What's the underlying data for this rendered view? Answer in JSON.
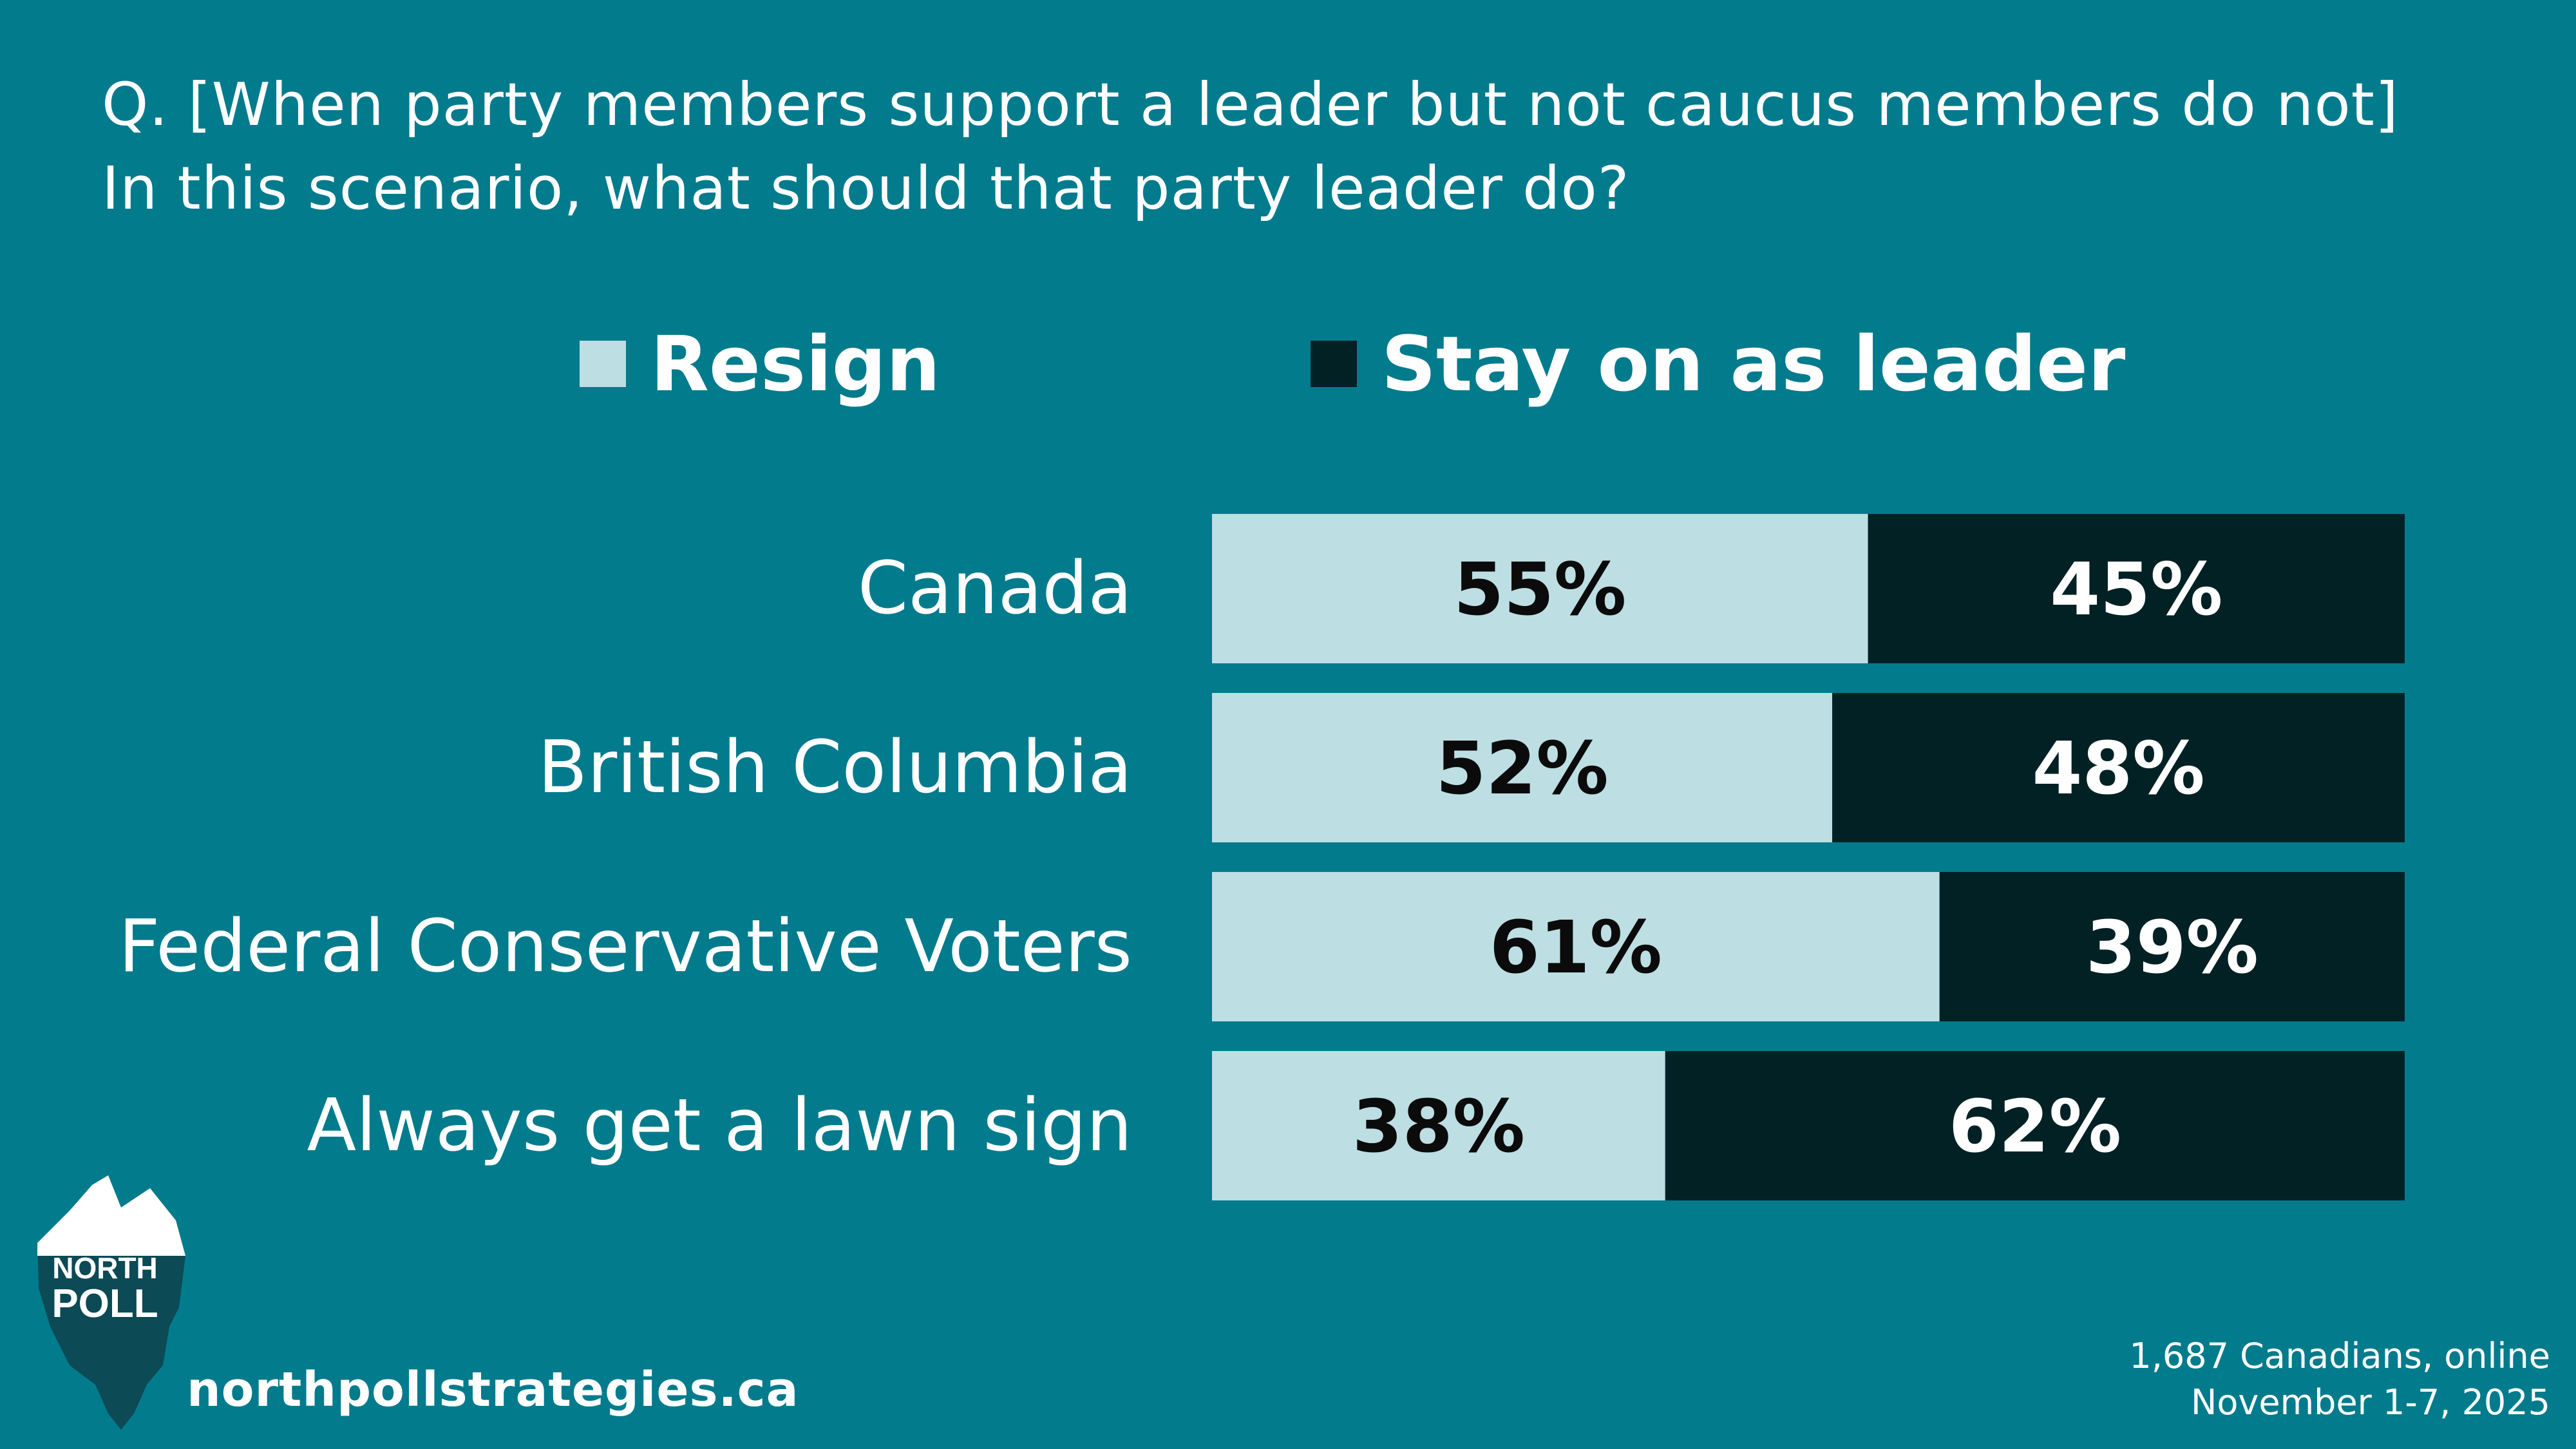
{
  "question": {
    "line1": "Q. [When party members support a leader but not caucus members do not]",
    "line2": "In this scenario, what should that party leader do?"
  },
  "colors": {
    "background": "#027b8d",
    "resign": "#bddee3",
    "stay": "#012125",
    "resign_text": "#0b0b0b",
    "stay_text": "#ffffff"
  },
  "chart_data": {
    "type": "bar",
    "orientation": "horizontal",
    "stacked": true,
    "percent": true,
    "categories": [
      "Canada",
      "British Columbia",
      "Federal Conservative Voters",
      "Always get a lawn sign"
    ],
    "series": [
      {
        "name": "Resign",
        "values": [
          55,
          52,
          61,
          38
        ]
      },
      {
        "name": "Stay on as leader",
        "values": [
          45,
          48,
          39,
          62
        ]
      }
    ],
    "data_labels": [
      [
        "55%",
        "52%",
        "61%",
        "38%"
      ],
      [
        "45%",
        "48%",
        "39%",
        "62%"
      ]
    ],
    "xlim": [
      0,
      100
    ],
    "legend_position": "top",
    "grid": false
  },
  "footer": {
    "sample_line1": "1,687 Canadians, online",
    "sample_line2": "November 1-7, 2025",
    "website": "northpollstrategies.ca"
  },
  "logo": {
    "text_line1": "NORTH",
    "text_line2": "POLL",
    "icon": "iceberg-icon"
  }
}
